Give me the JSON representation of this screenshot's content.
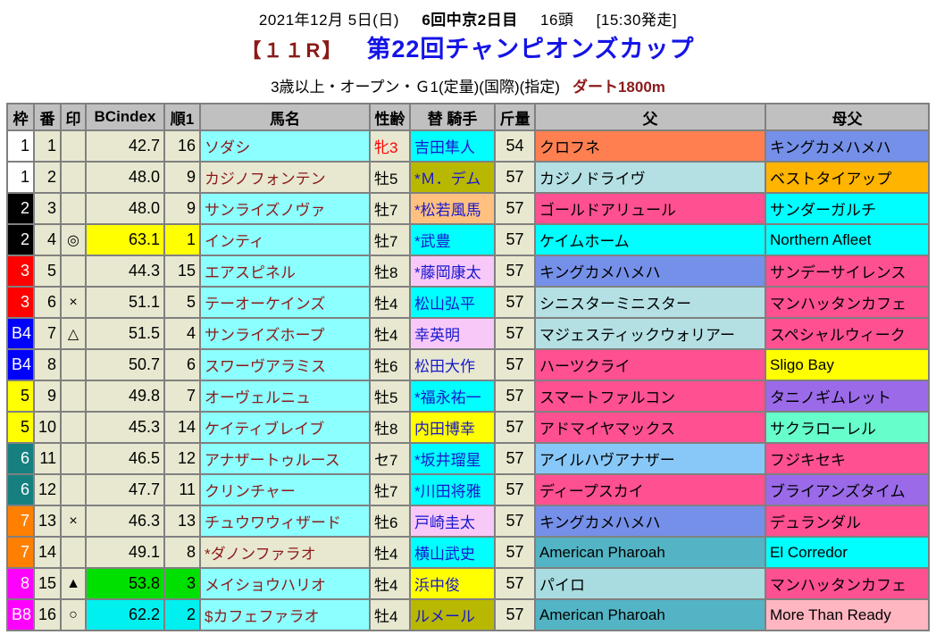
{
  "header": {
    "date": "2021年12月 5日(日)",
    "meeting": "6回中京2日目",
    "head_count": "16頭",
    "start_time": "[15:30発走]"
  },
  "title": {
    "race_number": "【１１R】",
    "race_name": "第22回チャンピオンズカップ"
  },
  "conditions": {
    "text": "3歳以上・オープン・Ｇ1(定量)(国際)(指定)",
    "course": "ダート1800m"
  },
  "colors": {
    "header_bg": "#C0C0C0",
    "default_cell_bg": "#E8E8D0",
    "grid_border": "#808080",
    "horse_name_bg": "#8CFFFF",
    "horse_name_text": "#8B1A1A",
    "jockey_text": "#1818CC",
    "race_name_text": "#1414E6",
    "accent_dark_red": "#8B1A1A",
    "rank1_bg": "#FFFF00",
    "rank2_bg": "#00F0F0",
    "rank3_bg": "#00E000",
    "filly_text": "#FF0000"
  },
  "table": {
    "headers": [
      "枠",
      "番",
      "印",
      "BCindex",
      "順1",
      "馬名",
      "性齢",
      "替 騎手",
      "斤量",
      "父",
      "母父"
    ],
    "rows": [
      {
        "waku": "1",
        "waku_bg": "#FFFFFF",
        "waku_fg": "#000000",
        "num": "1",
        "mark": "",
        "bcindex": "42.7",
        "rank": "16",
        "bc_bg": "",
        "horse": "ソダシ",
        "horse_bg": "#8CFFFF",
        "sexage": "牝3",
        "sexage_fg": "#FF0000",
        "jockey": "吉田隼人",
        "jockey_bg": "#00FFFF",
        "weight": "54",
        "sire": "クロフネ",
        "sire_bg": "#FF7F50",
        "damsire": "キングカメハメハ",
        "damsire_bg": "#7590E8"
      },
      {
        "waku": "1",
        "waku_bg": "#FFFFFF",
        "waku_fg": "#000000",
        "num": "2",
        "mark": "",
        "bcindex": "48.0",
        "rank": "9",
        "bc_bg": "",
        "horse": "カジノフォンテン",
        "horse_bg": "#E8E8D0",
        "sexage": "牡5",
        "sexage_fg": "#000000",
        "jockey": "*Ｍ．デム",
        "jockey_bg": "#B8B800",
        "weight": "57",
        "sire": "カジノドライヴ",
        "sire_bg": "#B4E0E4",
        "damsire": "ベストタイアップ",
        "damsire_bg": "#FFB400"
      },
      {
        "waku": "2",
        "waku_bg": "#000000",
        "waku_fg": "#FFFFFF",
        "num": "3",
        "mark": "",
        "bcindex": "48.0",
        "rank": "9",
        "bc_bg": "",
        "horse": "サンライズノヴァ",
        "horse_bg": "#8CFFFF",
        "sexage": "牡7",
        "sexage_fg": "#000000",
        "jockey": "*松若風馬",
        "jockey_bg": "#FFC080",
        "weight": "57",
        "sire": "ゴールドアリュール",
        "sire_bg": "#FF5092",
        "damsire": "サンダーガルチ",
        "damsire_bg": "#00FFFF"
      },
      {
        "waku": "2",
        "waku_bg": "#000000",
        "waku_fg": "#FFFFFF",
        "num": "4",
        "mark": "◎",
        "bcindex": "63.1",
        "rank": "1",
        "bc_bg": "#FFFF00",
        "horse": "インティ",
        "horse_bg": "#8CFFFF",
        "sexage": "牡7",
        "sexage_fg": "#000000",
        "jockey": "*武豊",
        "jockey_bg": "#00FFFF",
        "weight": "57",
        "sire": "ケイムホーム",
        "sire_bg": "#00FFFF",
        "damsire": "Northern Afleet",
        "damsire_bg": "#00FFFF"
      },
      {
        "waku": "3",
        "waku_bg": "#FF0000",
        "waku_fg": "#FFFFFF",
        "num": "5",
        "mark": "",
        "bcindex": "44.3",
        "rank": "15",
        "bc_bg": "",
        "horse": "エアスピネル",
        "horse_bg": "#8CFFFF",
        "sexage": "牡8",
        "sexage_fg": "#000000",
        "jockey": "*藤岡康太",
        "jockey_bg": "#F8C8F8",
        "weight": "57",
        "sire": "キングカメハメハ",
        "sire_bg": "#7590E8",
        "damsire": "サンデーサイレンス",
        "damsire_bg": "#FF5092"
      },
      {
        "waku": "3",
        "waku_bg": "#FF0000",
        "waku_fg": "#FFFFFF",
        "num": "6",
        "mark": "×",
        "bcindex": "51.1",
        "rank": "5",
        "bc_bg": "",
        "horse": "テーオーケインズ",
        "horse_bg": "#8CFFFF",
        "sexage": "牡4",
        "sexage_fg": "#000000",
        "jockey": "松山弘平",
        "jockey_bg": "#00FFFF",
        "weight": "57",
        "sire": "シニスターミニスター",
        "sire_bg": "#B4E0E4",
        "damsire": "マンハッタンカフェ",
        "damsire_bg": "#FF5092"
      },
      {
        "waku": "B4",
        "waku_bg": "#0000FF",
        "waku_fg": "#FFFFFF",
        "num": "7",
        "mark": "△",
        "bcindex": "51.5",
        "rank": "4",
        "bc_bg": "",
        "horse": "サンライズホープ",
        "horse_bg": "#8CFFFF",
        "sexage": "牡4",
        "sexage_fg": "#000000",
        "jockey": "幸英明",
        "jockey_bg": "#F8C8F8",
        "weight": "57",
        "sire": "マジェスティックウォリアー",
        "sire_bg": "#B4E0E4",
        "damsire": "スペシャルウィーク",
        "damsire_bg": "#FF5092"
      },
      {
        "waku": "B4",
        "waku_bg": "#0000FF",
        "waku_fg": "#FFFFFF",
        "num": "8",
        "mark": "",
        "bcindex": "50.7",
        "rank": "6",
        "bc_bg": "",
        "horse": "スワーヴアラミス",
        "horse_bg": "#8CFFFF",
        "sexage": "牡6",
        "sexage_fg": "#000000",
        "jockey": "松田大作",
        "jockey_bg": "#E8E8D0",
        "weight": "57",
        "sire": "ハーツクライ",
        "sire_bg": "#FF5092",
        "damsire": "Sligo Bay",
        "damsire_bg": "#FFFF00"
      },
      {
        "waku": "5",
        "waku_bg": "#FFFF00",
        "waku_fg": "#000000",
        "num": "9",
        "mark": "",
        "bcindex": "49.8",
        "rank": "7",
        "bc_bg": "",
        "horse": "オーヴェルニュ",
        "horse_bg": "#8CFFFF",
        "sexage": "牡5",
        "sexage_fg": "#000000",
        "jockey": "*福永祐一",
        "jockey_bg": "#00FFFF",
        "weight": "57",
        "sire": "スマートファルコン",
        "sire_bg": "#FF5092",
        "damsire": "タニノギムレット",
        "damsire_bg": "#9A6AE8"
      },
      {
        "waku": "5",
        "waku_bg": "#FFFF00",
        "waku_fg": "#000000",
        "num": "10",
        "mark": "",
        "bcindex": "45.3",
        "rank": "14",
        "bc_bg": "",
        "horse": "ケイティブレイブ",
        "horse_bg": "#8CFFFF",
        "sexage": "牡8",
        "sexage_fg": "#000000",
        "jockey": "内田博幸",
        "jockey_bg": "#FFFF00",
        "weight": "57",
        "sire": "アドマイヤマックス",
        "sire_bg": "#FF5092",
        "damsire": "サクラローレル",
        "damsire_bg": "#66FFCC"
      },
      {
        "waku": "6",
        "waku_bg": "#168080",
        "waku_fg": "#FFFFFF",
        "num": "11",
        "mark": "",
        "bcindex": "46.5",
        "rank": "12",
        "bc_bg": "",
        "horse": "アナザートゥルース",
        "horse_bg": "#8CFFFF",
        "sexage": "セ7",
        "sexage_fg": "#000000",
        "jockey": "*坂井瑠星",
        "jockey_bg": "#00FFFF",
        "weight": "57",
        "sire": "アイルハヴアナザー",
        "sire_bg": "#88C8F8",
        "damsire": "フジキセキ",
        "damsire_bg": "#FF5092"
      },
      {
        "waku": "6",
        "waku_bg": "#168080",
        "waku_fg": "#FFFFFF",
        "num": "12",
        "mark": "",
        "bcindex": "47.7",
        "rank": "11",
        "bc_bg": "",
        "horse": "クリンチャー",
        "horse_bg": "#8CFFFF",
        "sexage": "牡7",
        "sexage_fg": "#000000",
        "jockey": "*川田将雅",
        "jockey_bg": "#00FFFF",
        "weight": "57",
        "sire": "ディープスカイ",
        "sire_bg": "#FF5092",
        "damsire": "ブライアンズタイム",
        "damsire_bg": "#9A6AE8"
      },
      {
        "waku": "7",
        "waku_bg": "#FF8000",
        "waku_fg": "#FFFFFF",
        "num": "13",
        "mark": "×",
        "bcindex": "46.3",
        "rank": "13",
        "bc_bg": "",
        "horse": "チュウワウィザード",
        "horse_bg": "#8CFFFF",
        "sexage": "牡6",
        "sexage_fg": "#000000",
        "jockey": "戸崎圭太",
        "jockey_bg": "#F8C8F8",
        "weight": "57",
        "sire": "キングカメハメハ",
        "sire_bg": "#7590E8",
        "damsire": "デュランダル",
        "damsire_bg": "#FF5092"
      },
      {
        "waku": "7",
        "waku_bg": "#FF8000",
        "waku_fg": "#FFFFFF",
        "num": "14",
        "mark": "",
        "bcindex": "49.1",
        "rank": "8",
        "bc_bg": "",
        "horse": "*ダノンファラオ",
        "horse_bg": "#E8E8D0",
        "sexage": "牡4",
        "sexage_fg": "#000000",
        "jockey": "横山武史",
        "jockey_bg": "#00FFFF",
        "weight": "57",
        "sire": "American Pharoah",
        "sire_bg": "#52B4C4",
        "damsire": "El Corredor",
        "damsire_bg": "#00FFFF"
      },
      {
        "waku": "8",
        "waku_bg": "#FF00FF",
        "waku_fg": "#FFFFFF",
        "num": "15",
        "mark": "▲",
        "bcindex": "53.8",
        "rank": "3",
        "bc_bg": "#00E000",
        "horse": "メイショウハリオ",
        "horse_bg": "#8CFFFF",
        "sexage": "牡4",
        "sexage_fg": "#000000",
        "jockey": "浜中俊",
        "jockey_bg": "#FFFF00",
        "weight": "57",
        "sire": "パイロ",
        "sire_bg": "#A8DCE0",
        "damsire": "マンハッタンカフェ",
        "damsire_bg": "#FF5092"
      },
      {
        "waku": "B8",
        "waku_bg": "#FF00FF",
        "waku_fg": "#FFFFFF",
        "num": "16",
        "mark": "○",
        "bcindex": "62.2",
        "rank": "2",
        "bc_bg": "#00F0F0",
        "horse": "$カフェファラオ",
        "horse_bg": "#8CFFFF",
        "sexage": "牡4",
        "sexage_fg": "#000000",
        "jockey": "ルメール",
        "jockey_bg": "#B8B800",
        "weight": "57",
        "sire": "American Pharoah",
        "sire_bg": "#52B4C4",
        "damsire": "More Than Ready",
        "damsire_bg": "#FFB6C1"
      }
    ]
  }
}
